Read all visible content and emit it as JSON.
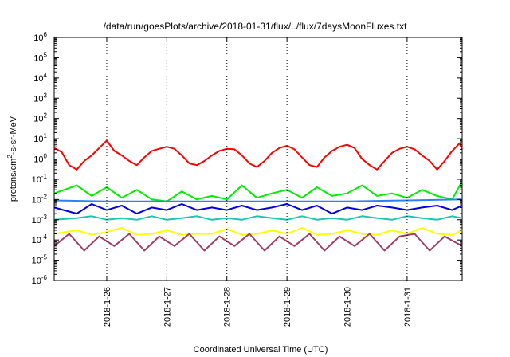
{
  "chart_data": {
    "type": "line",
    "title": "/data/run/goesPlots/archive/2018-01-31/flux/../flux/7daysMoonFluxes.txt",
    "xlabel": "Coordinated Universal Time (UTC)",
    "ylabel_parts": [
      "protons/cm",
      "2",
      "-s-sr-MeV"
    ],
    "y_scale": "log",
    "ylim": [
      1e-06,
      1000000.0
    ],
    "xlim": [
      "2018-01-25 03:00",
      "2018-01-31 22:00"
    ],
    "grid": false,
    "legend": "none",
    "y_ticks": [
      {
        "base": "10",
        "exp": "-6",
        "value": 1e-06
      },
      {
        "base": "10",
        "exp": "-5",
        "value": 1e-05
      },
      {
        "base": "10",
        "exp": "-4",
        "value": 0.0001
      },
      {
        "base": "10",
        "exp": "-3",
        "value": 0.001
      },
      {
        "base": "10",
        "exp": "-2",
        "value": 0.01
      },
      {
        "base": "10",
        "exp": "-1",
        "value": 0.1
      },
      {
        "base": "10",
        "exp": "0",
        "value": 1
      },
      {
        "base": "10",
        "exp": "1",
        "value": 10
      },
      {
        "base": "10",
        "exp": "2",
        "value": 100
      },
      {
        "base": "10",
        "exp": "3",
        "value": 1000
      },
      {
        "base": "10",
        "exp": "4",
        "value": 10000
      },
      {
        "base": "10",
        "exp": "5",
        "value": 100000
      },
      {
        "base": "10",
        "exp": "6",
        "value": 1000000
      }
    ],
    "x_ticks": [
      {
        "label": "2018-1-26",
        "value": "2018-01-26"
      },
      {
        "label": "2018-1-27",
        "value": "2018-01-27"
      },
      {
        "label": "2018-1-28",
        "value": "2018-01-28"
      },
      {
        "label": "2018-1-29",
        "value": "2018-01-29"
      },
      {
        "label": "2018-1-30",
        "value": "2018-01-30"
      },
      {
        "label": "2018-1-31",
        "value": "2018-01-31"
      }
    ],
    "series": [
      {
        "color": "#ff0000",
        "x": [
          "2018-01-25 03:00",
          "2018-01-25 06:00",
          "2018-01-25 09:00",
          "2018-01-25 12:00",
          "2018-01-25 15:00",
          "2018-01-25 18:00",
          "2018-01-25 21:00",
          "2018-01-26 00:00",
          "2018-01-26 03:00",
          "2018-01-26 06:00",
          "2018-01-26 09:00",
          "2018-01-26 12:00",
          "2018-01-26 15:00",
          "2018-01-26 18:00",
          "2018-01-26 21:00",
          "2018-01-27 00:00",
          "2018-01-27 03:00",
          "2018-01-27 06:00",
          "2018-01-27 09:00",
          "2018-01-27 12:00",
          "2018-01-27 15:00",
          "2018-01-27 18:00",
          "2018-01-27 21:00",
          "2018-01-28 00:00",
          "2018-01-28 03:00",
          "2018-01-28 06:00",
          "2018-01-28 09:00",
          "2018-01-28 12:00",
          "2018-01-28 15:00",
          "2018-01-28 18:00",
          "2018-01-28 21:00",
          "2018-01-29 00:00",
          "2018-01-29 03:00",
          "2018-01-29 06:00",
          "2018-01-29 09:00",
          "2018-01-29 12:00",
          "2018-01-29 15:00",
          "2018-01-29 18:00",
          "2018-01-29 21:00",
          "2018-01-30 00:00",
          "2018-01-30 03:00",
          "2018-01-30 06:00",
          "2018-01-30 09:00",
          "2018-01-30 12:00",
          "2018-01-30 15:00",
          "2018-01-30 18:00",
          "2018-01-30 21:00",
          "2018-01-31 00:00",
          "2018-01-31 03:00",
          "2018-01-31 06:00",
          "2018-01-31 09:00",
          "2018-01-31 12:00",
          "2018-01-31 15:00",
          "2018-01-31 18:00",
          "2018-01-31 21:00",
          "2018-01-31 22:00"
        ],
        "values": [
          3.5,
          2.2,
          0.5,
          0.3,
          0.8,
          1.5,
          3.5,
          8,
          2.5,
          1.5,
          0.8,
          0.5,
          1.2,
          2.5,
          3.2,
          4,
          3.2,
          1.5,
          0.6,
          0.5,
          0.8,
          1.5,
          2.5,
          3.2,
          3,
          1.5,
          0.6,
          0.4,
          0.8,
          2,
          3.5,
          4.5,
          3,
          1.2,
          0.5,
          0.4,
          1.2,
          2.5,
          4,
          5,
          3.5,
          1,
          0.5,
          0.3,
          0.8,
          2,
          3.2,
          4,
          3,
          1.5,
          0.8,
          0.3,
          0.8,
          2.5,
          6,
          3
        ]
      },
      {
        "color": "#00ee00",
        "x": [
          "2018-01-25 03:00",
          "2018-01-25 12:00",
          "2018-01-25 18:00",
          "2018-01-26 00:00",
          "2018-01-26 06:00",
          "2018-01-26 12:00",
          "2018-01-26 18:00",
          "2018-01-27 00:00",
          "2018-01-27 06:00",
          "2018-01-27 12:00",
          "2018-01-27 18:00",
          "2018-01-28 00:00",
          "2018-01-28 06:00",
          "2018-01-28 12:00",
          "2018-01-28 18:00",
          "2018-01-29 00:00",
          "2018-01-29 06:00",
          "2018-01-29 12:00",
          "2018-01-29 18:00",
          "2018-01-30 00:00",
          "2018-01-30 06:00",
          "2018-01-30 12:00",
          "2018-01-30 18:00",
          "2018-01-31 00:00",
          "2018-01-31 06:00",
          "2018-01-31 12:00",
          "2018-01-31 18:00",
          "2018-01-31 22:00"
        ],
        "values": [
          0.02,
          0.05,
          0.015,
          0.04,
          0.012,
          0.03,
          0.01,
          0.008,
          0.025,
          0.01,
          0.015,
          0.01,
          0.05,
          0.012,
          0.02,
          0.03,
          0.012,
          0.04,
          0.015,
          0.02,
          0.05,
          0.015,
          0.02,
          0.012,
          0.03,
          0.015,
          0.01,
          0.08
        ]
      },
      {
        "color": "#2a80ff",
        "x": [
          "2018-01-25 03:00",
          "2018-01-26 00:00",
          "2018-01-27 00:00",
          "2018-01-28 00:00",
          "2018-01-29 00:00",
          "2018-01-30 00:00",
          "2018-01-31 00:00",
          "2018-01-31 22:00"
        ],
        "values": [
          0.009,
          0.008,
          0.008,
          0.008,
          0.008,
          0.008,
          0.009,
          0.01
        ]
      },
      {
        "color": "#0000dd",
        "x": [
          "2018-01-25 03:00",
          "2018-01-25 12:00",
          "2018-01-25 18:00",
          "2018-01-26 00:00",
          "2018-01-26 06:00",
          "2018-01-26 12:00",
          "2018-01-26 18:00",
          "2018-01-27 00:00",
          "2018-01-27 06:00",
          "2018-01-27 12:00",
          "2018-01-27 18:00",
          "2018-01-28 00:00",
          "2018-01-28 06:00",
          "2018-01-28 12:00",
          "2018-01-28 18:00",
          "2018-01-29 00:00",
          "2018-01-29 06:00",
          "2018-01-29 12:00",
          "2018-01-29 18:00",
          "2018-01-30 00:00",
          "2018-01-30 06:00",
          "2018-01-30 12:00",
          "2018-01-30 18:00",
          "2018-01-31 00:00",
          "2018-01-31 06:00",
          "2018-01-31 12:00",
          "2018-01-31 18:00",
          "2018-01-31 22:00"
        ],
        "values": [
          0.004,
          0.002,
          0.006,
          0.003,
          0.005,
          0.002,
          0.004,
          0.003,
          0.006,
          0.003,
          0.004,
          0.003,
          0.005,
          0.003,
          0.004,
          0.006,
          0.003,
          0.005,
          0.002,
          0.004,
          0.003,
          0.005,
          0.004,
          0.003,
          0.004,
          0.005,
          0.003,
          0.005
        ]
      },
      {
        "color": "#1ac6b0",
        "x": [
          "2018-01-25 03:00",
          "2018-01-25 12:00",
          "2018-01-25 18:00",
          "2018-01-26 00:00",
          "2018-01-26 06:00",
          "2018-01-26 12:00",
          "2018-01-26 18:00",
          "2018-01-27 00:00",
          "2018-01-27 06:00",
          "2018-01-27 12:00",
          "2018-01-27 18:00",
          "2018-01-28 00:00",
          "2018-01-28 06:00",
          "2018-01-28 12:00",
          "2018-01-28 18:00",
          "2018-01-29 00:00",
          "2018-01-29 06:00",
          "2018-01-29 12:00",
          "2018-01-29 18:00",
          "2018-01-30 00:00",
          "2018-01-30 06:00",
          "2018-01-30 12:00",
          "2018-01-30 18:00",
          "2018-01-31 00:00",
          "2018-01-31 06:00",
          "2018-01-31 12:00",
          "2018-01-31 18:00",
          "2018-01-31 22:00"
        ],
        "values": [
          0.001,
          0.0012,
          0.0015,
          0.001,
          0.0012,
          0.001,
          0.0015,
          0.001,
          0.0012,
          0.0015,
          0.001,
          0.0012,
          0.001,
          0.0015,
          0.0012,
          0.001,
          0.0015,
          0.001,
          0.0012,
          0.001,
          0.0015,
          0.0012,
          0.001,
          0.0015,
          0.0012,
          0.001,
          0.0015,
          0.0012
        ]
      },
      {
        "color": "#ffff00",
        "x": [
          "2018-01-25 03:00",
          "2018-01-25 12:00",
          "2018-01-25 18:00",
          "2018-01-26 00:00",
          "2018-01-26 06:00",
          "2018-01-26 12:00",
          "2018-01-26 18:00",
          "2018-01-27 00:00",
          "2018-01-27 06:00",
          "2018-01-27 12:00",
          "2018-01-27 18:00",
          "2018-01-28 00:00",
          "2018-01-28 06:00",
          "2018-01-28 12:00",
          "2018-01-28 18:00",
          "2018-01-29 00:00",
          "2018-01-29 06:00",
          "2018-01-29 12:00",
          "2018-01-29 18:00",
          "2018-01-30 00:00",
          "2018-01-30 06:00",
          "2018-01-30 12:00",
          "2018-01-30 18:00",
          "2018-01-31 00:00",
          "2018-01-31 06:00",
          "2018-01-31 12:00",
          "2018-01-31 18:00",
          "2018-01-31 22:00"
        ],
        "values": [
          0.0002,
          0.0003,
          0.00018,
          0.00025,
          0.0004,
          0.00018,
          0.0002,
          0.0003,
          0.00018,
          0.0002,
          0.0002,
          0.00035,
          0.00018,
          0.0002,
          0.0003,
          0.0002,
          0.0004,
          0.00018,
          0.0002,
          0.0003,
          0.0002,
          0.00018,
          0.0003,
          0.0002,
          0.0004,
          0.0002,
          0.00018,
          0.0003
        ]
      },
      {
        "color": "#9e3d66",
        "x": [
          "2018-01-25 03:00",
          "2018-01-25 09:00",
          "2018-01-25 15:00",
          "2018-01-25 21:00",
          "2018-01-26 03:00",
          "2018-01-26 09:00",
          "2018-01-26 15:00",
          "2018-01-26 21:00",
          "2018-01-27 03:00",
          "2018-01-27 09:00",
          "2018-01-27 15:00",
          "2018-01-27 21:00",
          "2018-01-28 03:00",
          "2018-01-28 09:00",
          "2018-01-28 15:00",
          "2018-01-28 21:00",
          "2018-01-29 03:00",
          "2018-01-29 09:00",
          "2018-01-29 15:00",
          "2018-01-29 21:00",
          "2018-01-30 03:00",
          "2018-01-30 09:00",
          "2018-01-30 15:00",
          "2018-01-30 21:00",
          "2018-01-31 03:00",
          "2018-01-31 09:00",
          "2018-01-31 15:00",
          "2018-01-31 22:00"
        ],
        "values": [
          5e-05,
          0.0002,
          3e-05,
          0.00015,
          5e-05,
          0.0002,
          3e-05,
          0.00015,
          5e-05,
          0.0002,
          3e-05,
          0.00015,
          5e-05,
          0.0002,
          3e-05,
          0.00015,
          5e-05,
          0.0002,
          3e-05,
          0.00015,
          5e-05,
          0.0002,
          3e-05,
          0.00015,
          0.0002,
          3e-05,
          0.00015,
          5e-05
        ]
      }
    ]
  }
}
